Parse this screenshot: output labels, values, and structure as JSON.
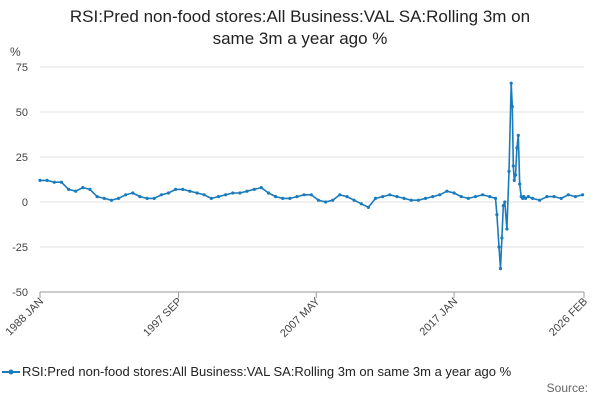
{
  "chart_data": {
    "type": "line",
    "title_lines": [
      "RSI:Pred non-food stores:All Business:VAL SA:Rolling 3m on",
      "same 3m a year ago %"
    ],
    "ylabel": "%",
    "xlabel": "",
    "ylim": [
      -50,
      75
    ],
    "yticks": [
      75,
      50,
      25,
      0,
      -25,
      -50
    ],
    "xlim": [
      1988.0,
      2026.1
    ],
    "xticks": [
      {
        "value": 1988.0,
        "label": "1988 JAN"
      },
      {
        "value": 1997.7,
        "label": "1997 SEP"
      },
      {
        "value": 2007.35,
        "label": "2007 MAY"
      },
      {
        "value": 2017.0,
        "label": "2017 JAN"
      },
      {
        "value": 2026.1,
        "label": "2026 FEB"
      }
    ],
    "grid": "horizontal",
    "legend_placement": "bottom",
    "colors": {
      "series": "#1a7bbd",
      "grid": "#e0e0e0",
      "axis": "#999999"
    },
    "series": [
      {
        "name": "RSI:Pred non-food stores:All Business:VAL SA:Rolling 3m on same 3m a year ago %",
        "x": [
          1988.0,
          1988.5,
          1989.0,
          1989.5,
          1990.0,
          1990.5,
          1991.0,
          1991.5,
          1992.0,
          1992.5,
          1993.0,
          1993.5,
          1994.0,
          1994.5,
          1995.0,
          1995.5,
          1996.0,
          1996.5,
          1997.0,
          1997.5,
          1998.0,
          1998.5,
          1999.0,
          1999.5,
          2000.0,
          2000.5,
          2001.0,
          2001.5,
          2002.0,
          2002.5,
          2003.0,
          2003.5,
          2004.0,
          2004.5,
          2005.0,
          2005.5,
          2006.0,
          2006.5,
          2007.0,
          2007.5,
          2008.0,
          2008.5,
          2009.0,
          2009.5,
          2010.0,
          2010.5,
          2011.0,
          2011.5,
          2012.0,
          2012.5,
          2013.0,
          2013.5,
          2014.0,
          2014.5,
          2015.0,
          2015.5,
          2016.0,
          2016.5,
          2017.0,
          2017.5,
          2018.0,
          2018.5,
          2019.0,
          2019.5,
          2019.9,
          2020.0,
          2020.15,
          2020.25,
          2020.35,
          2020.45,
          2020.55,
          2020.7,
          2020.85,
          2021.0,
          2021.08,
          2021.15,
          2021.22,
          2021.3,
          2021.4,
          2021.5,
          2021.6,
          2021.7,
          2021.8,
          2021.9,
          2022.0,
          2022.2,
          2022.5,
          2023.0,
          2023.5,
          2024.0,
          2024.5,
          2025.0,
          2025.5,
          2026.0
        ],
        "values": [
          12,
          12,
          11,
          11,
          7,
          6,
          8,
          7,
          3,
          2,
          1,
          2,
          4,
          5,
          3,
          2,
          2,
          4,
          5,
          7,
          7,
          6,
          5,
          4,
          2,
          3,
          4,
          5,
          5,
          6,
          7,
          8,
          5,
          3,
          2,
          2,
          3,
          4,
          4,
          1,
          0,
          1,
          4,
          3,
          1,
          -1,
          -3,
          2,
          3,
          4,
          3,
          2,
          1,
          1,
          2,
          3,
          4,
          6,
          5,
          3,
          2,
          3,
          4,
          3,
          2,
          -7,
          -25,
          -37,
          -20,
          -2,
          0,
          -15,
          17,
          66,
          53,
          20,
          12,
          15,
          30,
          37,
          10,
          3,
          2,
          3,
          2,
          3,
          2,
          1,
          3,
          3,
          2,
          4,
          3,
          4
        ]
      }
    ]
  },
  "legend": {
    "label": "RSI:Pred non-food stores:All Business:VAL SA:Rolling 3m on same 3m a year ago %"
  },
  "source": {
    "label": "Source:"
  }
}
